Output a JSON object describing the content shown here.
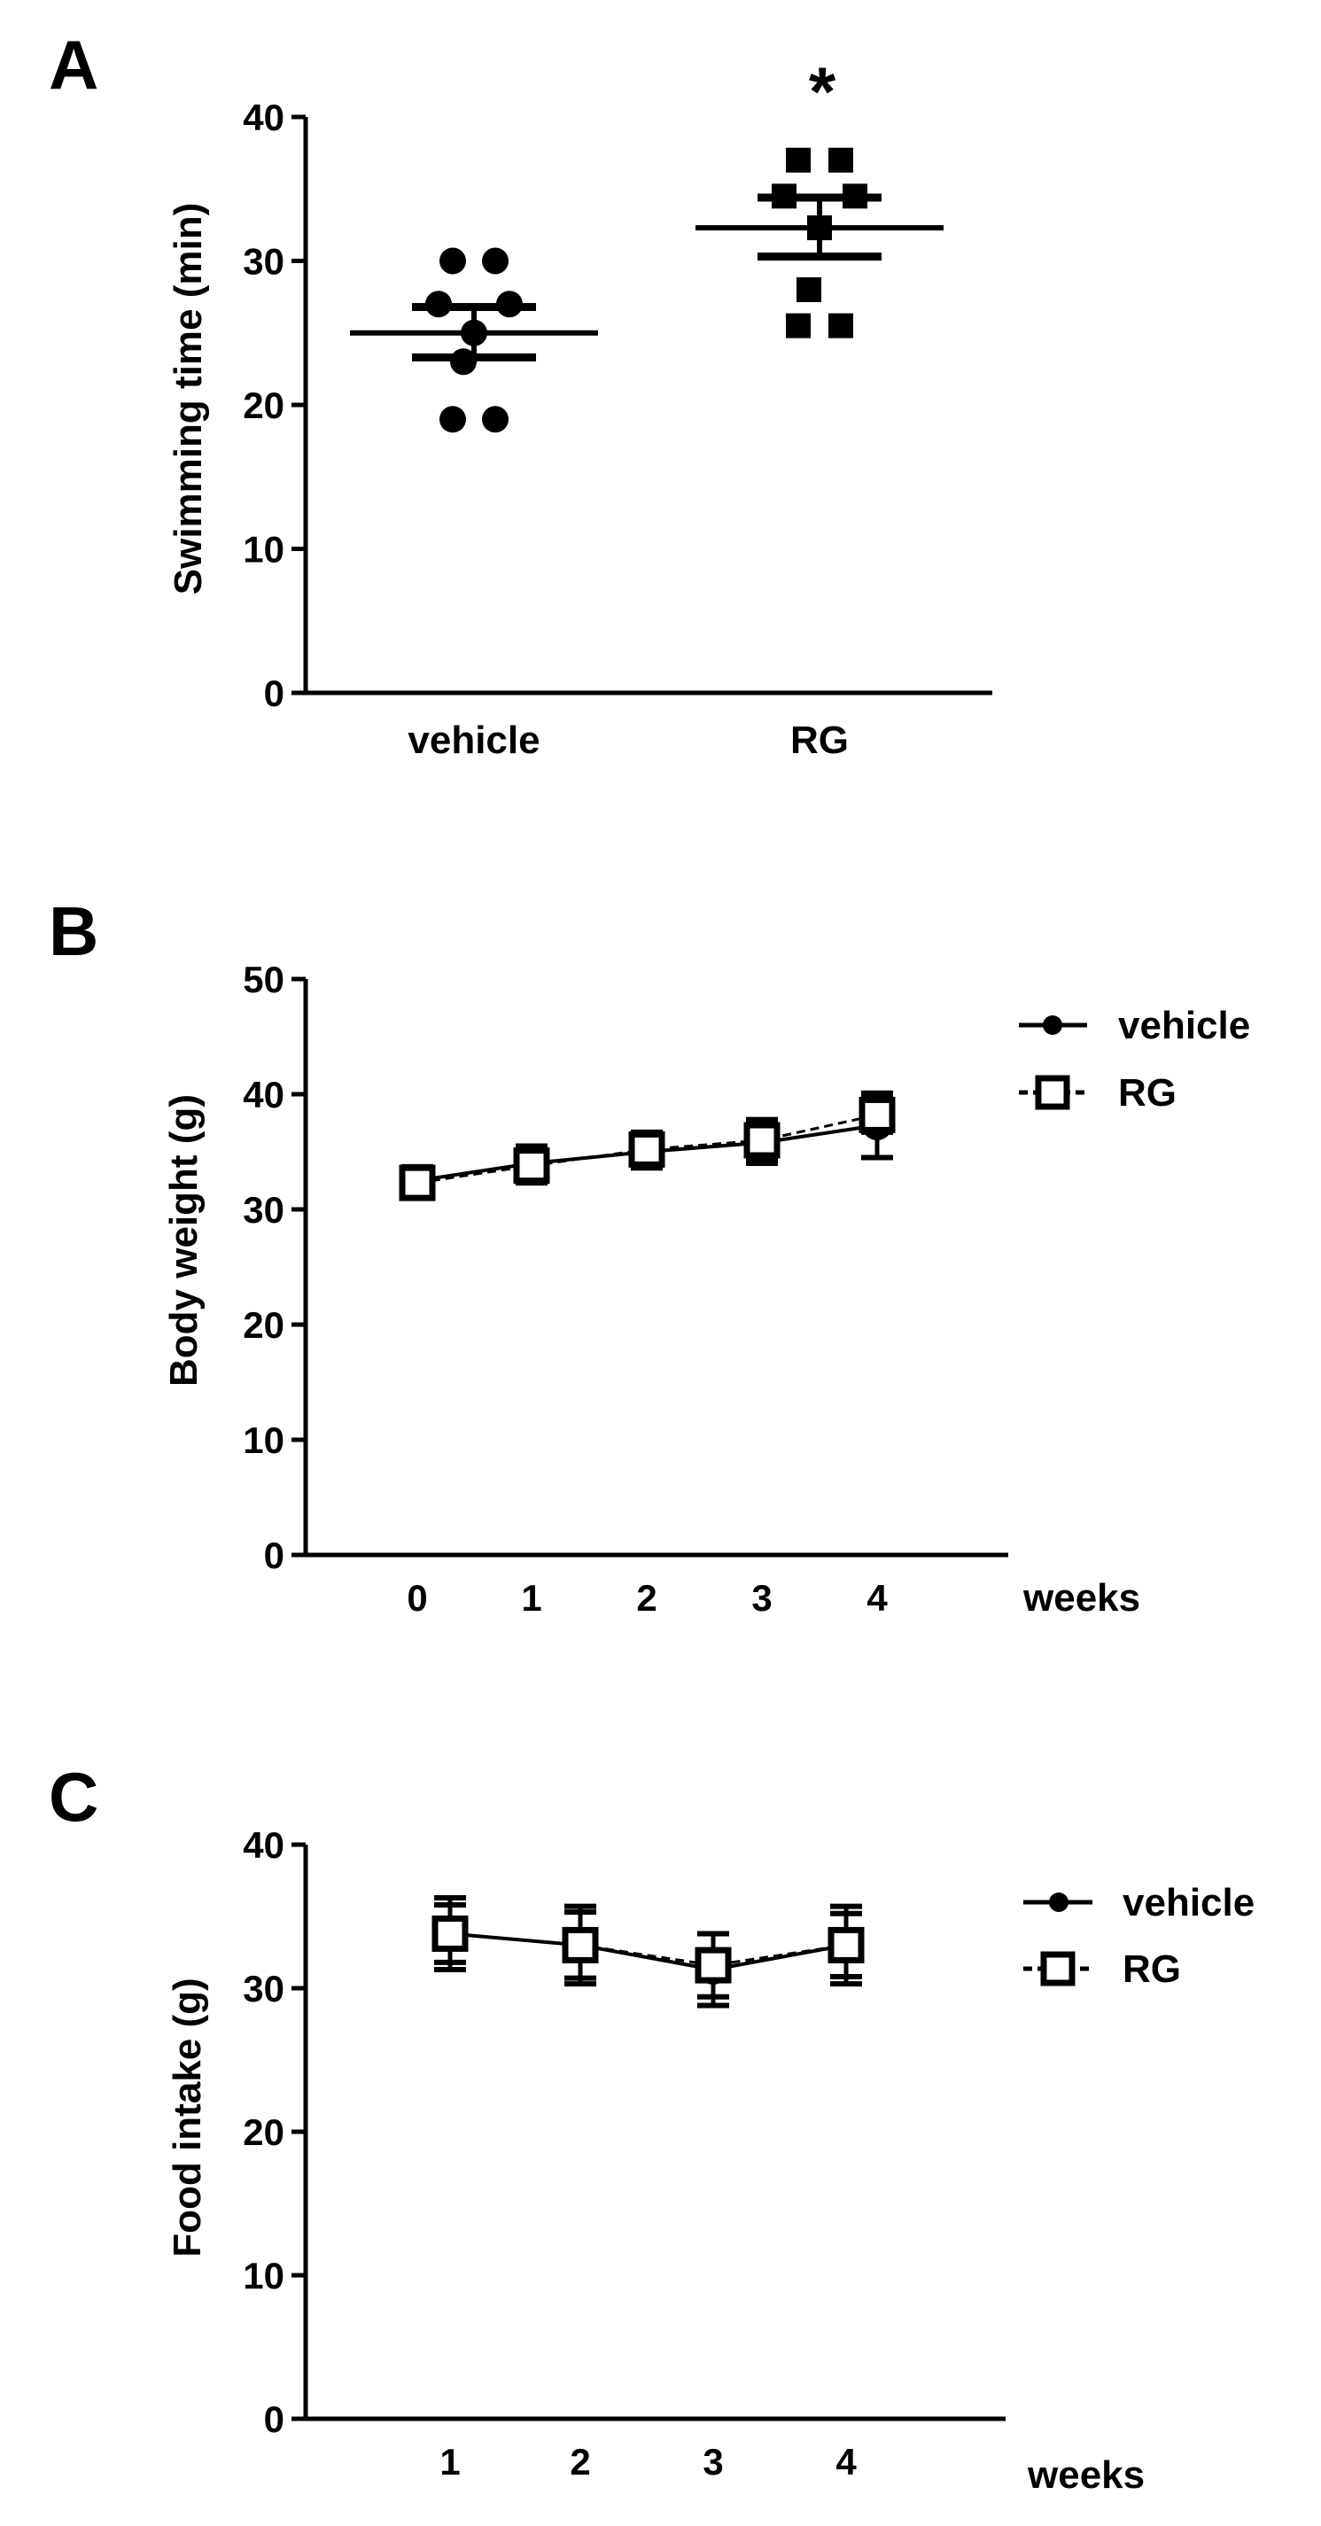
{
  "chart_data": [
    {
      "panel": "A",
      "type": "scatter",
      "title": "",
      "xlabel": "",
      "ylabel": "Swimming time (min)",
      "ylim": [
        0,
        40
      ],
      "yticks": [
        0,
        10,
        20,
        30,
        40
      ],
      "categories": [
        "vehicle",
        "RG"
      ],
      "series": [
        {
          "name": "vehicle",
          "marker": "circle",
          "mean": 25,
          "sem_low": 23.3,
          "sem_high": 26.8,
          "points": [
            30,
            30,
            27,
            27,
            25,
            23,
            19,
            19
          ]
        },
        {
          "name": "RG",
          "marker": "square",
          "mean": 32.3,
          "sem_low": 30.3,
          "sem_high": 34.4,
          "points": [
            37,
            37,
            34.5,
            34.5,
            32.3,
            28,
            25.5,
            25.5
          ]
        }
      ],
      "annotations": [
        {
          "text": "*",
          "category": "RG"
        }
      ]
    },
    {
      "panel": "B",
      "type": "line",
      "title": "",
      "xlabel": "weeks",
      "ylabel": "Body weight (g)",
      "ylim": [
        0,
        50
      ],
      "yticks": [
        0,
        10,
        20,
        30,
        40,
        50
      ],
      "x": [
        0,
        1,
        2,
        3,
        4
      ],
      "series": [
        {
          "name": "vehicle",
          "marker": "circle",
          "values": [
            32.5,
            34,
            35,
            35.8,
            37.3
          ],
          "err": [
            1.2,
            1.5,
            1.4,
            1.8,
            2.8
          ]
        },
        {
          "name": "RG",
          "marker": "square",
          "values": [
            32.3,
            33.8,
            35.2,
            36,
            38.2
          ],
          "err": [
            1.2,
            1.5,
            1.5,
            1.8,
            1.5
          ]
        }
      ],
      "legend": "top-right"
    },
    {
      "panel": "C",
      "type": "line",
      "title": "",
      "xlabel": "weeks",
      "ylabel": "Food intake (g)",
      "ylim": [
        0,
        40
      ],
      "yticks": [
        0,
        10,
        20,
        30,
        40
      ],
      "x": [
        1,
        2,
        3,
        4
      ],
      "series": [
        {
          "name": "vehicle",
          "marker": "circle",
          "values": [
            33.8,
            33,
            31.3,
            33
          ],
          "err": [
            2.5,
            2.7,
            2.5,
            2.7
          ]
        },
        {
          "name": "RG",
          "marker": "square",
          "values": [
            33.8,
            33,
            31.6,
            33
          ],
          "err": [
            2.0,
            2.3,
            2.2,
            2.2
          ]
        }
      ],
      "legend": "top-right"
    }
  ]
}
